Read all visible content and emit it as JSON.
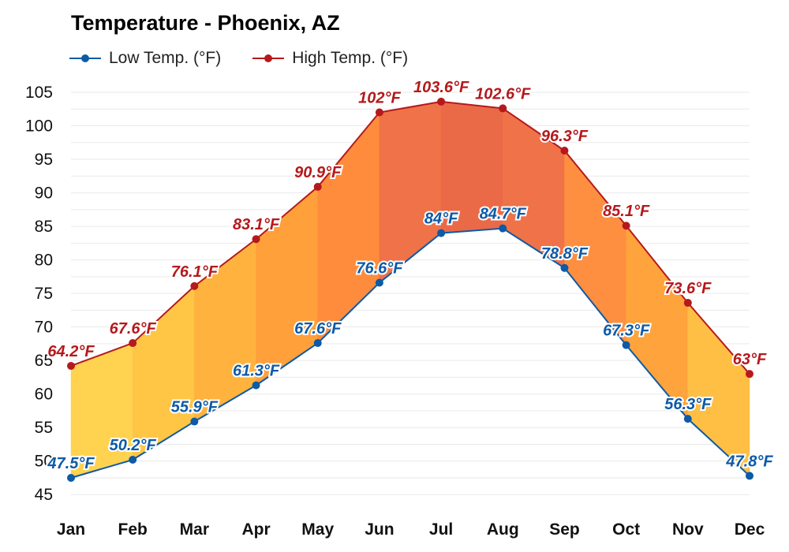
{
  "chart_data": {
    "type": "line",
    "title": "Temperature - Phoenix, AZ",
    "categories": [
      "Jan",
      "Feb",
      "Mar",
      "Apr",
      "May",
      "Jun",
      "Jul",
      "Aug",
      "Sep",
      "Oct",
      "Nov",
      "Dec"
    ],
    "series": [
      {
        "name": "Low Temp. (°F)",
        "color": "#0d5aa7",
        "values": [
          47.5,
          50.2,
          55.9,
          61.3,
          67.6,
          76.6,
          84,
          84.7,
          78.8,
          67.3,
          56.3,
          47.8
        ],
        "labels": [
          "47.5°F",
          "50.2°F",
          "55.9°F",
          "61.3°F",
          "67.6°F",
          "76.6°F",
          "84°F",
          "84.7°F",
          "78.8°F",
          "67.3°F",
          "56.3°F",
          "47.8°F"
        ]
      },
      {
        "name": "High Temp. (°F)",
        "color": "#b5191c",
        "values": [
          64.2,
          67.6,
          76.1,
          83.1,
          90.9,
          102,
          103.6,
          102.6,
          96.3,
          85.1,
          73.6,
          63
        ],
        "labels": [
          "64.2°F",
          "67.6°F",
          "76.1°F",
          "83.1°F",
          "90.9°F",
          "102°F",
          "103.6°F",
          "102.6°F",
          "96.3°F",
          "85.1°F",
          "73.6°F",
          "63°F"
        ]
      }
    ],
    "fill_colors": [
      "#ffd350",
      "#ffc646",
      "#ffb33e",
      "#ffa03a",
      "#ff8c3c",
      "#ef7248",
      "#ea6a48",
      "#ef7248",
      "#ff8f40",
      "#ffa33c",
      "#ffbf44",
      "#ffd550"
    ],
    "yticks": [
      45,
      50,
      55,
      60,
      65,
      70,
      75,
      80,
      85,
      90,
      95,
      100,
      105
    ],
    "ylim": [
      43.5,
      107
    ],
    "grid": true,
    "legend_position": "top-left"
  }
}
